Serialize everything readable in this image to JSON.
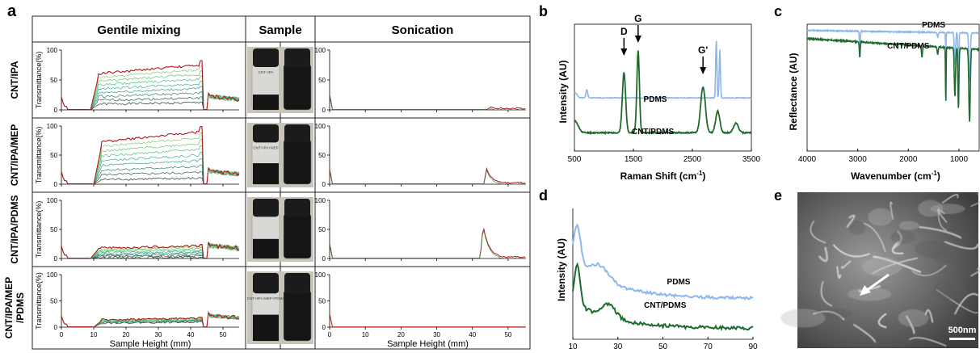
{
  "panels": {
    "a": {
      "letter": "a",
      "headers": {
        "mix": "Gentile mixing",
        "sample": "Sample",
        "son": "Sonication"
      },
      "rows": [
        "CNT/IPA",
        "CNT/IPA/MEP",
        "CNT/IPA/PDMS",
        "CNT/IPA/MEP\n/PDMS"
      ],
      "ylabel": "Transmittance(%)",
      "xlabel": "Sample Height (mm)",
      "yticks": [
        "0",
        "50",
        "100"
      ],
      "xticks": [
        "0",
        "10",
        "20",
        "30",
        "40",
        "50"
      ],
      "vial_labels": [
        "CNT+IPA",
        "CNT+IPA+MEP",
        "",
        "CNT+IPA+MEP+PDMS"
      ]
    },
    "b": {
      "letter": "b"
    },
    "c": {
      "letter": "c"
    },
    "d": {
      "letter": "d"
    },
    "e": {
      "letter": "e",
      "scalebar": "500nm"
    }
  },
  "chart_data": [
    {
      "panel": "a",
      "type": "line",
      "subplots": [
        {
          "row": "CNT/IPA",
          "treatment": "Gentile mixing",
          "plateau_range": [
            10,
            43
          ],
          "max_transmittance": 75,
          "min_transmittance": 12,
          "x_range": [
            0,
            55
          ],
          "ylim": [
            0,
            100
          ]
        },
        {
          "row": "CNT/IPA",
          "treatment": "Sonication",
          "peaks": [
            {
              "x": 45,
              "y": 4
            }
          ],
          "x_range": [
            0,
            55
          ],
          "ylim": [
            0,
            100
          ]
        },
        {
          "row": "CNT/IPA/MEP",
          "treatment": "Gentile mixing",
          "plateau_range": [
            11,
            43
          ],
          "max_transmittance": 90,
          "min_transmittance": 10,
          "x_range": [
            0,
            55
          ],
          "ylim": [
            0,
            100
          ]
        },
        {
          "row": "CNT/IPA/MEP",
          "treatment": "Sonication",
          "peaks": [
            {
              "x": 44,
              "y": 25
            }
          ],
          "x_range": [
            0,
            55
          ],
          "ylim": [
            0,
            100
          ]
        },
        {
          "row": "CNT/IPA/PDMS",
          "treatment": "Gentile mixing",
          "plateau_range": [
            10,
            43
          ],
          "max_transmittance": 22,
          "min_transmittance": 2,
          "x_range": [
            0,
            55
          ],
          "ylim": [
            0,
            100
          ]
        },
        {
          "row": "CNT/IPA/PDMS",
          "treatment": "Sonication",
          "peaks": [
            {
              "x": 43,
              "y": 55
            }
          ],
          "x_range": [
            0,
            55
          ],
          "ylim": [
            0,
            100
          ]
        },
        {
          "row": "CNT/IPA/MEP/PDMS",
          "treatment": "Gentile mixing",
          "plateau_range": [
            11,
            43
          ],
          "max_transmittance": 17,
          "min_transmittance": 10,
          "x_range": [
            0,
            55
          ],
          "ylim": [
            0,
            100
          ]
        },
        {
          "row": "CNT/IPA/MEP/PDMS",
          "treatment": "Sonication",
          "peaks": [],
          "x_range": [
            0,
            55
          ],
          "ylim": [
            0,
            100
          ]
        }
      ]
    },
    {
      "panel": "b",
      "type": "line",
      "xlabel": "Raman Shift (cm-1)",
      "ylabel": "Intensity (AU)",
      "xticks": [
        "500",
        "1500",
        "2500",
        "3500"
      ],
      "xlim": [
        500,
        3500
      ],
      "series": [
        {
          "name": "PDMS",
          "color": "#8cb8ec",
          "peaks": [
            {
              "x": 710,
              "y": 0.14
            },
            {
              "x": 2905,
              "y": 0.95
            },
            {
              "x": 2965,
              "y": 0.8
            }
          ]
        },
        {
          "name": "CNT/PDMS",
          "color": "#1e6b2e",
          "peaks": [
            {
              "x": 1340,
              "y": 0.78
            },
            {
              "x": 1580,
              "y": 0.82
            },
            {
              "x": 2680,
              "y": 0.5
            }
          ]
        }
      ],
      "annotations": [
        "D",
        "G",
        "G'"
      ]
    },
    {
      "panel": "c",
      "type": "line",
      "xlabel": "Wavenumber (cm-1)",
      "ylabel": "Reflectance (AU)",
      "xticks": [
        "4000",
        "3000",
        "2000",
        "1000"
      ],
      "xlim": [
        4000,
        600
      ],
      "series": [
        {
          "name": "PDMS",
          "color": "#8cb8ec",
          "dips": [
            2960,
            1260,
            1080,
            1010,
            790
          ]
        },
        {
          "name": "CNT/PDMS",
          "color": "#1e6b2e",
          "dips": [
            2960,
            1730,
            1260,
            1080,
            1010,
            790
          ]
        }
      ]
    },
    {
      "panel": "d",
      "type": "line",
      "xlabel": "2Θ (º)",
      "ylabel": "Intensity (AU)",
      "xticks": [
        "10",
        "30",
        "50",
        "70",
        "90"
      ],
      "xlim": [
        10,
        90
      ],
      "series": [
        {
          "name": "PDMS",
          "color": "#8cb8ec",
          "peaks": [
            {
              "x": 12,
              "y": 0.85
            },
            {
              "x": 22,
              "y": 0.55
            }
          ]
        },
        {
          "name": "CNT/PDMS",
          "color": "#1e6b2e",
          "peaks": [
            {
              "x": 12,
              "y": 0.6
            },
            {
              "x": 26,
              "y": 0.35
            }
          ]
        }
      ]
    }
  ]
}
